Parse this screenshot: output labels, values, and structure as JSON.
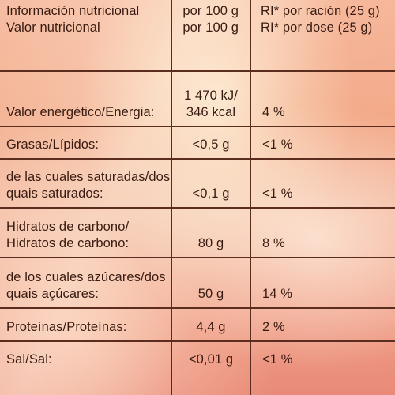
{
  "table": {
    "header": {
      "label_lines": [
        "Información nutricional",
        "Valor nutricional"
      ],
      "per100_lines": [
        "por 100 g",
        "por 100 g"
      ],
      "ri_lines": [
        "RI* por ración (25 g)",
        "RI* por dose (25 g)"
      ]
    },
    "rows": [
      {
        "label_lines": [
          "",
          "Valor energético/Energia:"
        ],
        "per100_lines": [
          "1 470 kJ/",
          "346 kcal"
        ],
        "ri_lines": [
          "",
          "4 %"
        ]
      },
      {
        "label_lines": [
          "Grasas/Lípidos:"
        ],
        "per100_lines": [
          "<0,5 g"
        ],
        "ri_lines": [
          "<1 %"
        ]
      },
      {
        "label_lines": [
          "de las cuales saturadas/dos",
          "quais saturados:"
        ],
        "per100_lines": [
          "",
          "<0,1 g"
        ],
        "ri_lines": [
          "",
          "<1 %"
        ]
      },
      {
        "label_lines": [
          "Hidratos de carbono/",
          "Hidratos de carbono:"
        ],
        "per100_lines": [
          "",
          "80 g"
        ],
        "ri_lines": [
          "",
          "8 %"
        ]
      },
      {
        "label_lines": [
          "de los cuales azúcares/dos",
          "quais açúcares:"
        ],
        "per100_lines": [
          "",
          "50 g"
        ],
        "ri_lines": [
          "",
          "14 %"
        ]
      },
      {
        "label_lines": [
          "Proteínas/Proteínas:"
        ],
        "per100_lines": [
          "4,4 g"
        ],
        "ri_lines": [
          "2 %"
        ]
      },
      {
        "label_lines": [
          "Sal/Sal:"
        ],
        "per100_lines": [
          "<0,01 g"
        ],
        "ri_lines": [
          "<1 %"
        ]
      }
    ]
  }
}
